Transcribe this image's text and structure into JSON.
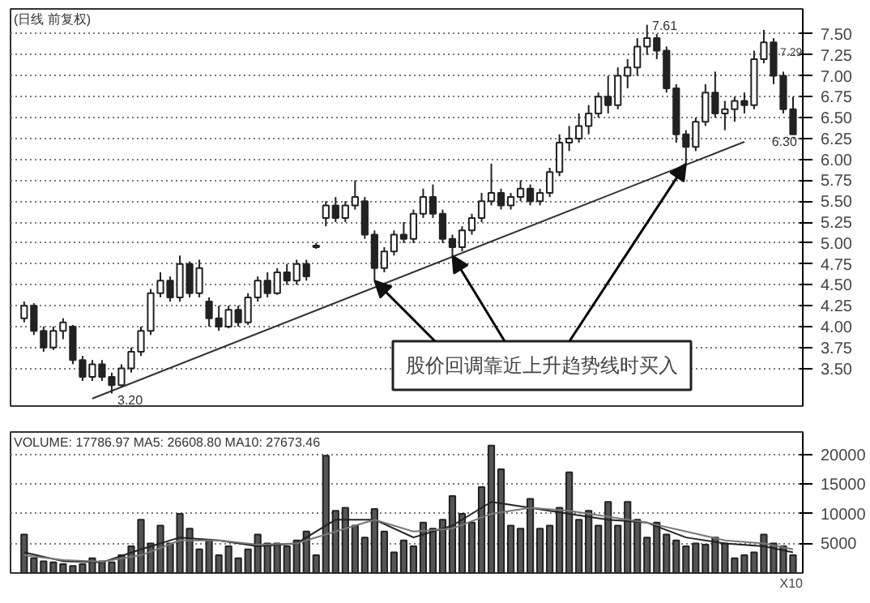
{
  "chart_data": [
    {
      "type": "candlestick",
      "title": "(日线 前复权)",
      "color": "#222222",
      "grid": "y",
      "categories": [
        null,
        null,
        null,
        null,
        null,
        null,
        null,
        null,
        null,
        null,
        null,
        null,
        null,
        null,
        null,
        null,
        null,
        null,
        null,
        null,
        null,
        null,
        null,
        null,
        null,
        null,
        null,
        null,
        null,
        null,
        null,
        null,
        null,
        null,
        null,
        null,
        null,
        null,
        null,
        null,
        null,
        null,
        null,
        null,
        null,
        null,
        null,
        null,
        null,
        null,
        null,
        null,
        null,
        null,
        null,
        null,
        null,
        null,
        null,
        null,
        null,
        null,
        null,
        null,
        null,
        null,
        null,
        null,
        null,
        null,
        null,
        null,
        null,
        null,
        null,
        null,
        null,
        null,
        null,
        null
      ],
      "ohlc": [
        [
          4.1,
          4.3,
          4.05,
          4.25
        ],
        [
          4.25,
          4.28,
          3.9,
          3.95
        ],
        [
          3.95,
          4.0,
          3.7,
          3.75
        ],
        [
          3.75,
          4.0,
          3.72,
          3.95
        ],
        [
          3.95,
          4.1,
          3.85,
          4.05
        ],
        [
          4.0,
          4.02,
          3.55,
          3.6
        ],
        [
          3.6,
          3.65,
          3.35,
          3.4
        ],
        [
          3.4,
          3.6,
          3.35,
          3.55
        ],
        [
          3.55,
          3.6,
          3.35,
          3.4
        ],
        [
          3.4,
          3.45,
          3.2,
          3.3
        ],
        [
          3.3,
          3.55,
          3.28,
          3.5
        ],
        [
          3.5,
          3.75,
          3.45,
          3.7
        ],
        [
          3.7,
          4.0,
          3.65,
          3.95
        ],
        [
          3.95,
          4.45,
          3.9,
          4.4
        ],
        [
          4.4,
          4.65,
          4.35,
          4.55
        ],
        [
          4.55,
          4.6,
          4.3,
          4.35
        ],
        [
          4.35,
          4.85,
          4.3,
          4.75
        ],
        [
          4.75,
          4.78,
          4.35,
          4.4
        ],
        [
          4.4,
          4.8,
          4.35,
          4.7
        ],
        [
          4.3,
          4.35,
          4.0,
          4.1
        ],
        [
          4.1,
          4.25,
          3.95,
          4.0
        ],
        [
          4.0,
          4.25,
          3.98,
          4.2
        ],
        [
          4.2,
          4.25,
          4.0,
          4.05
        ],
        [
          4.05,
          4.4,
          4.02,
          4.35
        ],
        [
          4.35,
          4.6,
          4.3,
          4.55
        ],
        [
          4.55,
          4.65,
          4.35,
          4.4
        ],
        [
          4.4,
          4.7,
          4.38,
          4.65
        ],
        [
          4.65,
          4.75,
          4.5,
          4.55
        ],
        [
          4.55,
          4.8,
          4.5,
          4.75
        ],
        [
          4.75,
          4.8,
          4.55,
          4.6
        ],
        [
          4.95,
          5.0,
          4.93,
          4.97
        ],
        [
          5.3,
          5.5,
          5.2,
          5.45
        ],
        [
          5.45,
          5.55,
          5.25,
          5.3
        ],
        [
          5.3,
          5.5,
          5.25,
          5.45
        ],
        [
          5.45,
          5.75,
          5.4,
          5.55
        ],
        [
          5.5,
          5.55,
          5.05,
          5.1
        ],
        [
          5.1,
          5.15,
          4.55,
          4.7
        ],
        [
          4.7,
          4.95,
          4.65,
          4.9
        ],
        [
          4.9,
          5.15,
          4.85,
          5.1
        ],
        [
          5.1,
          5.25,
          5.0,
          5.05
        ],
        [
          5.05,
          5.4,
          5.0,
          5.35
        ],
        [
          5.35,
          5.65,
          5.3,
          5.55
        ],
        [
          5.55,
          5.7,
          5.3,
          5.35
        ],
        [
          5.35,
          5.4,
          5.0,
          5.05
        ],
        [
          5.05,
          5.1,
          4.85,
          4.95
        ],
        [
          4.95,
          5.2,
          4.9,
          5.15
        ],
        [
          5.15,
          5.35,
          5.1,
          5.3
        ],
        [
          5.3,
          5.6,
          5.25,
          5.5
        ],
        [
          5.5,
          5.95,
          5.45,
          5.6
        ],
        [
          5.6,
          5.65,
          5.4,
          5.45
        ],
        [
          5.45,
          5.6,
          5.4,
          5.55
        ],
        [
          5.55,
          5.75,
          5.5,
          5.65
        ],
        [
          5.65,
          5.7,
          5.45,
          5.5
        ],
        [
          5.5,
          5.65,
          5.45,
          5.6
        ],
        [
          5.6,
          5.9,
          5.55,
          5.85
        ],
        [
          5.85,
          6.3,
          5.8,
          6.2
        ],
        [
          6.2,
          6.4,
          6.1,
          6.25
        ],
        [
          6.25,
          6.55,
          6.2,
          6.4
        ],
        [
          6.4,
          6.65,
          6.3,
          6.55
        ],
        [
          6.55,
          6.8,
          6.5,
          6.75
        ],
        [
          6.75,
          7.0,
          6.55,
          6.65
        ],
        [
          6.65,
          7.1,
          6.6,
          7.0
        ],
        [
          7.0,
          7.2,
          6.85,
          7.1
        ],
        [
          7.1,
          7.45,
          7.0,
          7.35
        ],
        [
          7.35,
          7.61,
          7.25,
          7.45
        ],
        [
          7.45,
          7.5,
          7.2,
          7.3
        ],
        [
          7.3,
          7.35,
          6.8,
          6.85
        ],
        [
          6.85,
          6.9,
          6.2,
          6.3
        ],
        [
          6.3,
          6.35,
          5.95,
          6.15
        ],
        [
          6.15,
          6.5,
          6.1,
          6.45
        ],
        [
          6.45,
          6.9,
          6.4,
          6.8
        ],
        [
          6.8,
          7.05,
          6.5,
          6.55
        ],
        [
          6.55,
          6.7,
          6.35,
          6.6
        ],
        [
          6.6,
          6.75,
          6.45,
          6.7
        ],
        [
          6.7,
          6.8,
          6.55,
          6.65
        ],
        [
          6.65,
          7.3,
          6.6,
          7.2
        ],
        [
          7.2,
          7.55,
          7.15,
          7.4
        ],
        [
          7.4,
          7.45,
          6.9,
          7.0
        ],
        [
          7.0,
          7.05,
          6.55,
          6.6
        ],
        [
          6.6,
          6.75,
          6.3,
          6.3
        ]
      ],
      "series": [
        {
          "type": "line",
          "color": "#333333",
          "values": [
            null,
            null,
            null,
            null,
            null,
            null,
            null,
            3.14,
            null,
            null,
            null,
            null,
            null,
            null,
            null,
            null,
            null,
            null,
            null,
            null,
            null,
            null,
            null,
            null,
            null,
            null,
            null,
            null,
            null,
            null,
            null,
            null,
            null,
            null,
            null,
            null,
            null,
            null,
            null,
            null,
            null,
            null,
            null,
            null,
            null,
            null,
            null,
            null,
            null,
            null,
            null,
            null,
            null,
            null,
            null,
            null,
            null,
            null,
            null,
            null,
            null,
            null,
            null,
            null,
            null,
            null,
            null,
            null,
            null,
            null,
            null,
            null,
            null,
            null,
            6.21,
            null,
            null,
            null,
            null,
            null
          ]
        }
      ],
      "ylim": [
        3.05,
        7.8
      ],
      "yticks": [
        {
          "value": 3.5,
          "label": "3.50"
        },
        {
          "value": 3.75,
          "label": "3.75"
        },
        {
          "value": 4,
          "label": "4.00"
        },
        {
          "value": 4.25,
          "label": "4.25"
        },
        {
          "value": 4.5,
          "label": "4.50"
        },
        {
          "value": 4.75,
          "label": "4.75"
        },
        {
          "value": 5,
          "label": "5.00"
        },
        {
          "value": 5.25,
          "label": "5.25"
        },
        {
          "value": 5.5,
          "label": "5.50"
        },
        {
          "value": 5.75,
          "label": "5.75"
        },
        {
          "value": 6,
          "label": "6.00"
        },
        {
          "value": 6.25,
          "label": "6.25"
        },
        {
          "value": 6.5,
          "label": "6.50"
        },
        {
          "value": 6.75,
          "label": "6.75"
        },
        {
          "value": 7,
          "label": "7.00"
        },
        {
          "value": 7.25,
          "label": "7.25"
        },
        {
          "value": 7.5,
          "label": "7.50"
        }
      ],
      "annotations": [
        "7.61",
        "3.20",
        "7.29",
        {
          "text": "6.30",
          "y": 6.3
        },
        "股价回调靠近上升趋势线时买入"
      ]
    },
    {
      "type": "bar",
      "title": "VOLUME: 17786.97  MA5: 26608.80  MA10: 27673.46",
      "color": "#555555",
      "grid": "y",
      "categories": [
        null,
        null,
        null,
        null,
        null,
        null,
        null,
        null,
        null,
        null,
        null,
        null,
        null,
        null,
        null,
        null,
        null,
        null,
        null,
        null,
        null,
        null,
        null,
        null,
        null,
        null,
        null,
        null,
        null,
        null,
        null,
        null,
        null,
        null,
        null,
        null,
        null,
        null,
        null,
        null,
        null,
        null,
        null,
        null,
        null,
        null,
        null,
        null,
        null,
        null,
        null,
        null,
        null,
        null,
        null,
        null,
        null,
        null,
        null,
        null,
        null,
        null,
        null,
        null,
        null,
        null,
        null,
        null,
        null,
        null,
        null,
        null,
        null,
        null,
        null,
        null,
        null,
        null,
        null,
        null
      ],
      "values": [
        6500,
        2500,
        2000,
        1800,
        1500,
        1200,
        1500,
        2500,
        2000,
        1800,
        3000,
        4500,
        9000,
        5000,
        8000,
        5000,
        10000,
        7500,
        4000,
        5500,
        3000,
        4500,
        2500,
        4000,
        6500,
        5000,
        5000,
        4500,
        5500,
        7000,
        3000,
        19800,
        10500,
        11000,
        8000,
        6000,
        10800,
        7000,
        3500,
        5500,
        4500,
        8500,
        7500,
        9000,
        13000,
        10000,
        8500,
        14500,
        21500,
        17500,
        8000,
        7500,
        12500,
        7500,
        8000,
        11000,
        17000,
        9000,
        10500,
        8000,
        12000,
        8000,
        12000,
        9000,
        6000,
        8500,
        6500,
        5500,
        4500,
        5000,
        4800,
        6000,
        5000,
        2500,
        3000,
        3500,
        6500,
        5000,
        4500,
        3000
      ],
      "series": [
        {
          "type": "line",
          "color": "#222222",
          "values": [
            3500,
            null,
            null,
            null,
            2000,
            null,
            null,
            null,
            1800,
            null,
            null,
            null,
            4000,
            null,
            null,
            null,
            6000,
            null,
            null,
            null,
            5500,
            null,
            null,
            null,
            4500,
            null,
            null,
            null,
            5000,
            null,
            null,
            null,
            9000,
            null,
            null,
            null,
            9000,
            null,
            null,
            null,
            6000,
            null,
            null,
            null,
            8000,
            null,
            null,
            null,
            12000,
            null,
            null,
            null,
            11000,
            null,
            null,
            null,
            10000,
            null,
            null,
            null,
            9000,
            null,
            null,
            null,
            8500,
            null,
            null,
            null,
            6000,
            null,
            null,
            null,
            5000,
            null,
            null,
            null,
            4500,
            null,
            null,
            3500
          ]
        },
        {
          "type": "line",
          "color": "#777777",
          "values": [
            3000,
            null,
            null,
            null,
            2200,
            null,
            null,
            null,
            1900,
            null,
            null,
            null,
            3000,
            null,
            null,
            null,
            5500,
            null,
            null,
            null,
            5500,
            null,
            null,
            null,
            4800,
            null,
            null,
            null,
            5000,
            null,
            null,
            null,
            7000,
            null,
            null,
            null,
            9000,
            null,
            null,
            null,
            7000,
            null,
            null,
            null,
            7500,
            null,
            null,
            null,
            10000,
            null,
            null,
            null,
            11000,
            null,
            null,
            null,
            10500,
            null,
            null,
            null,
            9500,
            null,
            null,
            null,
            8500,
            null,
            null,
            null,
            7000,
            null,
            null,
            null,
            5500,
            null,
            null,
            null,
            5000,
            null,
            null,
            4000
          ]
        }
      ],
      "ylim": [
        0,
        23800
      ],
      "yticks": [
        5000,
        10000,
        15000,
        20000
      ],
      "annotations": [
        "X10"
      ]
    }
  ]
}
